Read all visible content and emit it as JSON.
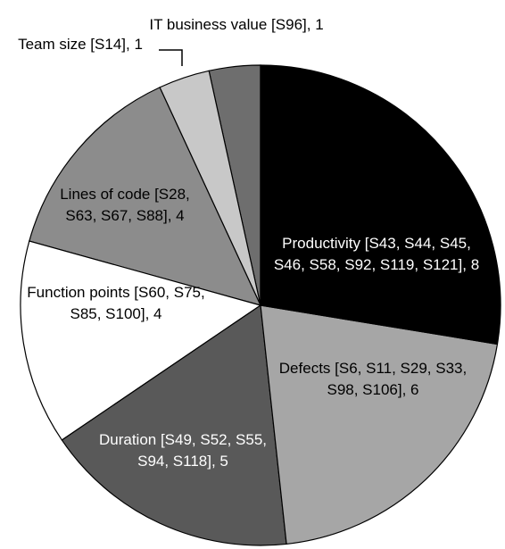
{
  "chart_data": {
    "type": "pie",
    "categories": [
      "Productivity [S43, S44, S45, S46, S58, S92, S119, S121]",
      "Defects [S6, S11, S29, S33, S98, S106]",
      "Duration [S49, S52, S55, S94, S118]",
      "Function points [S60, S75, S85, S100]",
      "Lines of code [S28, S63, S67, S88]",
      "Team size [S14]",
      "IT business value [S96]"
    ],
    "values": [
      8,
      6,
      5,
      4,
      4,
      1,
      1
    ],
    "value_labels": [
      ", 8",
      ", 6",
      ", 5",
      ", 4",
      ", 4",
      ", 1",
      ", 1"
    ],
    "colors": [
      "#000000",
      "#a6a6a6",
      "#595959",
      "#ffffff",
      "#8c8c8c",
      "#c8c8c8",
      "#6e6e6e"
    ]
  }
}
